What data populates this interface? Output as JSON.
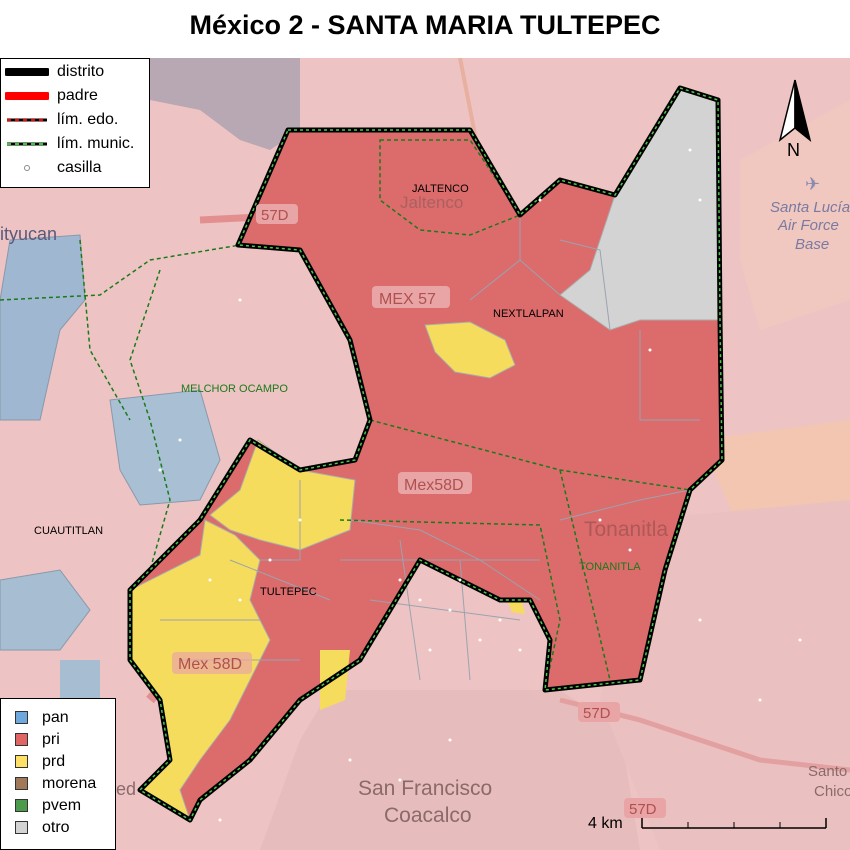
{
  "title": "México 2 - SANTA MARIA TULTEPEC",
  "legend_lines": [
    {
      "label": "distrito",
      "icon": "thick-black-line"
    },
    {
      "label": "padre",
      "icon": "thick-red-line"
    },
    {
      "label": "lím. edo.",
      "icon": "dashed-black-red-line"
    },
    {
      "label": "lím. munic.",
      "icon": "dashed-black-green-line"
    },
    {
      "label": "casilla",
      "icon": "open-circle"
    }
  ],
  "legend_parties": [
    {
      "label": "pan",
      "color": "#6fa8dc"
    },
    {
      "label": "pri",
      "color": "#e06666"
    },
    {
      "label": "prd",
      "color": "#ffe066"
    },
    {
      "label": "morena",
      "color": "#a0785a"
    },
    {
      "label": "pvem",
      "color": "#4c9a4c"
    },
    {
      "label": "otro",
      "color": "#d3d3d3"
    }
  ],
  "municipality_labels": {
    "jaltenco": "JALTENCO",
    "nextlalpan": "NEXTLALPAN",
    "melchor_ocampo": "MELCHOR OCAMPO",
    "cuautitlan": "CUAUTITLAN",
    "tultepec": "TULTEPEC",
    "tonanitla": "TONANITLA"
  },
  "basemap_labels": {
    "road_57d_top": "57D",
    "mex57": "MEX 57",
    "mex58d": "Mex58D",
    "mex58d_lower": "Mex 58D",
    "road_57d_bottom": "57D",
    "road_57d_bottom2": "57D",
    "jaltenco_town": "Jaltenco",
    "tonanitla_town": "Tonanitla",
    "san_francisco": "San Francisco",
    "coacalco": "Coacalco",
    "air_force_1": "Santa Lucía",
    "air_force_2": "Air Force",
    "air_force_3": "Base",
    "cuautitlan_edge": "ityucan",
    "santo_1": "Santo",
    "santo_2": "Chico",
    "left_edge": "ed"
  },
  "north_label": "N",
  "scale_label": "4 km"
}
